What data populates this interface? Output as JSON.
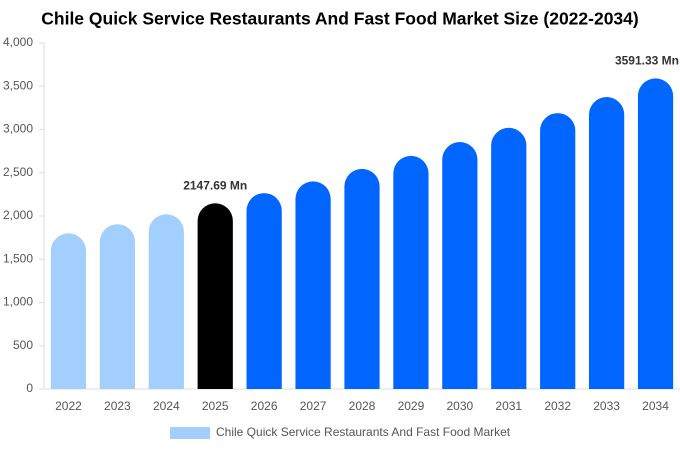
{
  "chart_data": {
    "type": "bar",
    "title": "Chile Quick Service Restaurants And Fast Food Market Size (2022-2034)",
    "categories": [
      "2022",
      "2023",
      "2024",
      "2025",
      "2026",
      "2027",
      "2028",
      "2029",
      "2030",
      "2031",
      "2032",
      "2033",
      "2034"
    ],
    "series": [
      {
        "name": "Chile Quick Service Restaurants And Fast Food Market",
        "color": "#a3cfff",
        "values": [
          1800,
          1905,
          2020,
          2147.69,
          2265,
          2400,
          2545,
          2695,
          2855,
          3020,
          3190,
          3375,
          3591.33
        ],
        "value_labels": [
          null,
          null,
          null,
          "2147.69 Mn",
          null,
          null,
          null,
          null,
          null,
          null,
          null,
          null,
          "3591.33 Mn"
        ],
        "colors": [
          "#a3cfff",
          "#a3cfff",
          "#a3cfff",
          "#000000",
          "#0066ff",
          "#0066ff",
          "#0066ff",
          "#0066ff",
          "#0066ff",
          "#0066ff",
          "#0066ff",
          "#0066ff",
          "#0066ff"
        ]
      }
    ],
    "ylim": [
      0,
      4000
    ],
    "yticks": [
      0,
      500,
      {
        "value": 1000,
        "label": "1,000"
      },
      {
        "value": 1500,
        "label": "1,500"
      },
      {
        "value": 2000,
        "label": "2,000"
      },
      {
        "value": 2500,
        "label": "2,500"
      },
      {
        "value": 3000,
        "label": "3,000"
      },
      {
        "value": 3500,
        "label": "3,500"
      },
      {
        "value": 4000,
        "label": "4,000"
      }
    ],
    "grid": false,
    "legend": "bottom"
  }
}
